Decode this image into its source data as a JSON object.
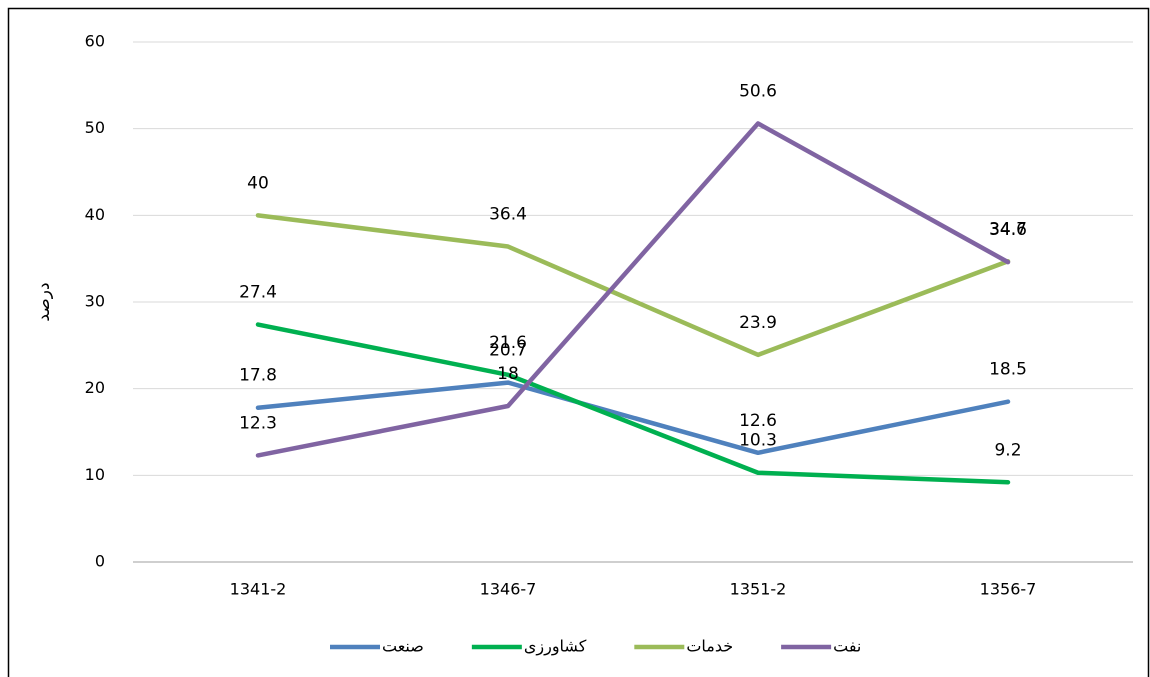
{
  "chart_data": {
    "type": "line",
    "y_label": "درصد",
    "categories": [
      "1341-2",
      "1346-7",
      "1351-2",
      "1356-7"
    ],
    "series": [
      {
        "name": "صنعت",
        "color": "#4f81bd",
        "values": [
          17.8,
          20.7,
          12.6,
          18.5
        ]
      },
      {
        "name": "کشاورزی",
        "color": "#00b050",
        "values": [
          27.4,
          21.6,
          10.3,
          9.2
        ]
      },
      {
        "name": "خدمات",
        "color": "#9bbb59",
        "values": [
          40,
          36.4,
          23.9,
          34.7
        ]
      },
      {
        "name": "نفت",
        "color": "#8064a2",
        "values": [
          12.3,
          18,
          50.6,
          34.6
        ]
      }
    ],
    "ylim": [
      0,
      60
    ],
    "yticks": [
      0,
      10,
      20,
      30,
      40,
      50,
      60
    ],
    "grid": true
  }
}
